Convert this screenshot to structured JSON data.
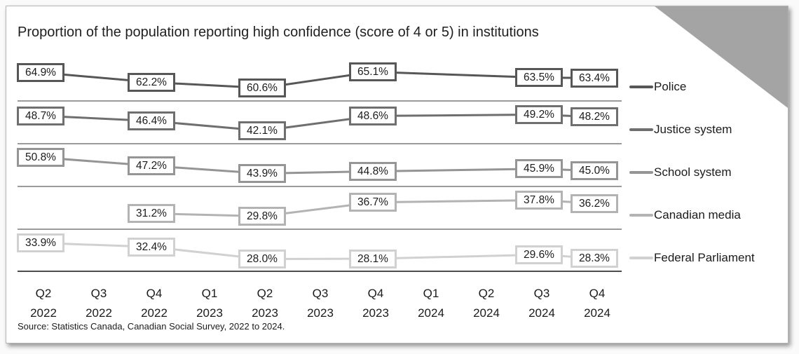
{
  "source": "Source: Statistics Canada, Canadian Social Survey, 2022 to 2024.",
  "chart_data": {
    "type": "line",
    "title": "Proportion of the population reporting high confidence (score of 4 or 5) in institutions",
    "categories": [
      "Q2 2022",
      "Q3 2022",
      "Q4 2022",
      "Q1 2023",
      "Q2 2023",
      "Q3 2023",
      "Q4 2023",
      "Q1 2024",
      "Q2 2024",
      "Q3 2024",
      "Q4 2024"
    ],
    "unit": "%",
    "legend_position": "right",
    "layout_hint": "five stacked bands, one per series, separated by horizontal divider lines; each data point shown as a boxed percentage label",
    "grid": "horizontal band dividers only, no y-axis",
    "series": [
      {
        "name": "Police",
        "color": "#575757",
        "points": [
          {
            "x": 0,
            "value": 64.9,
            "label": "64.9%"
          },
          {
            "x": 2,
            "value": 62.2,
            "label": "62.2%"
          },
          {
            "x": 4,
            "value": 60.6,
            "label": "60.6%"
          },
          {
            "x": 6,
            "value": 65.1,
            "label": "65.1%"
          },
          {
            "x": 9,
            "value": 63.5,
            "label": "63.5%"
          },
          {
            "x": 10,
            "value": 63.4,
            "label": "63.4%"
          }
        ]
      },
      {
        "name": "Justice system",
        "color": "#6f6f6f",
        "points": [
          {
            "x": 0,
            "value": 48.7,
            "label": "48.7%"
          },
          {
            "x": 2,
            "value": 46.4,
            "label": "46.4%"
          },
          {
            "x": 4,
            "value": 42.1,
            "label": "42.1%"
          },
          {
            "x": 6,
            "value": 48.6,
            "label": "48.6%"
          },
          {
            "x": 9,
            "value": 49.2,
            "label": "49.2%"
          },
          {
            "x": 10,
            "value": 48.2,
            "label": "48.2%"
          }
        ]
      },
      {
        "name": "School system",
        "color": "#959595",
        "points": [
          {
            "x": 0,
            "value": 50.8,
            "label": "50.8%"
          },
          {
            "x": 2,
            "value": 47.2,
            "label": "47.2%"
          },
          {
            "x": 4,
            "value": 43.9,
            "label": "43.9%"
          },
          {
            "x": 6,
            "value": 44.8,
            "label": "44.8%"
          },
          {
            "x": 9,
            "value": 45.9,
            "label": "45.9%"
          },
          {
            "x": 10,
            "value": 45.0,
            "label": "45.0%"
          }
        ]
      },
      {
        "name": "Canadian media",
        "color": "#b3b3b3",
        "points": [
          {
            "x": 2,
            "value": 31.2,
            "label": "31.2%"
          },
          {
            "x": 4,
            "value": 29.8,
            "label": "29.8%"
          },
          {
            "x": 6,
            "value": 36.7,
            "label": "36.7%"
          },
          {
            "x": 9,
            "value": 37.8,
            "label": "37.8%"
          },
          {
            "x": 10,
            "value": 36.2,
            "label": "36.2%"
          }
        ]
      },
      {
        "name": "Federal Parliament",
        "color": "#d1d1d1",
        "points": [
          {
            "x": 0,
            "value": 33.9,
            "label": "33.9%"
          },
          {
            "x": 2,
            "value": 32.4,
            "label": "32.4%"
          },
          {
            "x": 4,
            "value": 28.0,
            "label": "28.0%"
          },
          {
            "x": 6,
            "value": 28.1,
            "label": "28.1%"
          },
          {
            "x": 9,
            "value": 29.6,
            "label": "29.6%"
          },
          {
            "x": 10,
            "value": 28.3,
            "label": "28.3%"
          }
        ]
      }
    ],
    "divider_color": "#5f5f5f",
    "axis_line_color": "#4d4d4d",
    "corner_fold_color": "#a4a4a4"
  }
}
